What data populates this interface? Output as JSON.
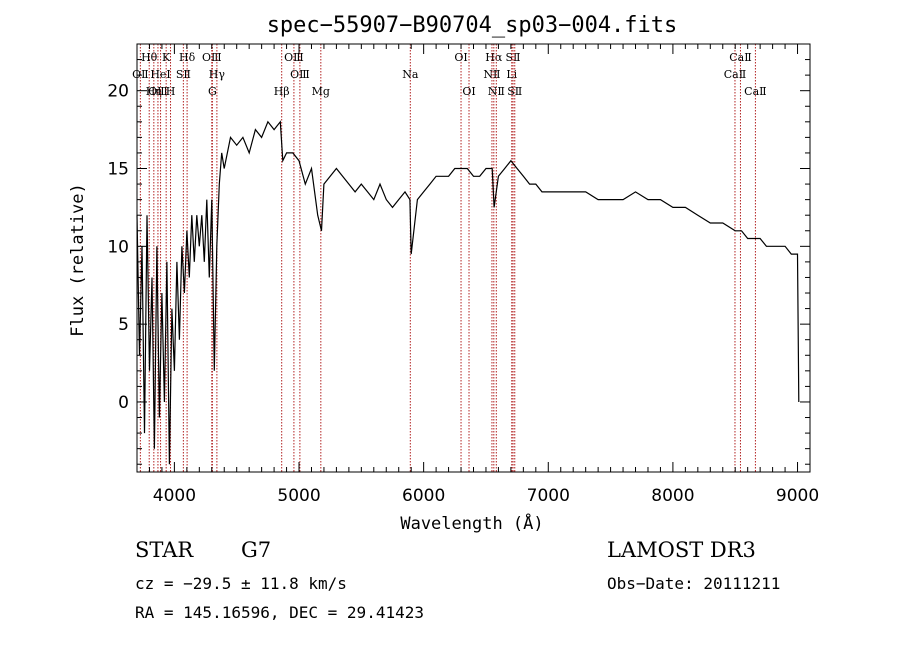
{
  "chart_data": {
    "type": "line",
    "title": "spec−55907−B90704_sp03−004.fits",
    "xlabel": "Wavelength (Å)",
    "ylabel": "Flux (relative)",
    "xlim": [
      3700,
      9100
    ],
    "ylim": [
      -4.5,
      23
    ],
    "xticks": [
      4000,
      5000,
      6000,
      7000,
      8000,
      9000
    ],
    "yticks": [
      0,
      5,
      10,
      15,
      20
    ],
    "grid": false,
    "series": [
      {
        "x": [
          3700,
          3720,
          3740,
          3760,
          3780,
          3800,
          3820,
          3840,
          3860,
          3880,
          3900,
          3920,
          3940,
          3960,
          3980,
          4000,
          4020,
          4040,
          4060,
          4080,
          4100,
          4120,
          4140,
          4160,
          4180,
          4200,
          4220,
          4240,
          4260,
          4280,
          4300,
          4320,
          4340,
          4360,
          4380,
          4400,
          4450,
          4500,
          4550,
          4600,
          4650,
          4700,
          4750,
          4800,
          4850,
          4870,
          4900,
          4950,
          5000,
          5050,
          5100,
          5150,
          5180,
          5200,
          5250,
          5300,
          5350,
          5400,
          5450,
          5500,
          5550,
          5600,
          5650,
          5700,
          5750,
          5800,
          5850,
          5890,
          5900,
          5950,
          6000,
          6050,
          6100,
          6150,
          6200,
          6250,
          6300,
          6350,
          6400,
          6450,
          6500,
          6550,
          6565,
          6600,
          6650,
          6700,
          6750,
          6800,
          6850,
          6900,
          6950,
          7000,
          7100,
          7200,
          7300,
          7400,
          7500,
          7600,
          7700,
          7800,
          7900,
          8000,
          8100,
          8200,
          8300,
          8400,
          8500,
          8550,
          8600,
          8650,
          8700,
          8750,
          8800,
          8850,
          8900,
          8950,
          9000,
          9010
        ],
        "y": [
          12,
          3,
          10,
          -2,
          12,
          2,
          8,
          -3,
          10,
          -1,
          7,
          0,
          9,
          -4,
          6,
          2,
          9,
          4,
          10,
          7,
          11,
          8,
          12,
          9,
          12,
          10,
          12,
          9,
          13,
          8,
          13,
          2,
          10,
          14,
          16,
          15,
          17,
          16.5,
          17,
          16,
          17.5,
          17,
          18,
          17.5,
          18,
          15.5,
          16,
          16,
          15.5,
          14,
          15,
          12,
          11,
          14,
          14.5,
          15,
          14.5,
          14,
          13.5,
          14,
          13.5,
          13,
          14,
          13,
          12.5,
          13,
          13.5,
          13,
          9.5,
          13,
          13.5,
          14,
          14.5,
          14.5,
          14.5,
          15,
          15,
          15,
          14.5,
          14.5,
          15,
          15,
          12.5,
          14.5,
          15,
          15.5,
          15,
          14.5,
          14,
          14,
          13.5,
          13.5,
          13.5,
          13.5,
          13.5,
          13,
          13,
          13,
          13.5,
          13,
          13,
          12.5,
          12.5,
          12,
          11.5,
          11.5,
          11,
          11,
          10.5,
          10.5,
          10.5,
          10,
          10,
          10,
          10,
          9.5,
          9.5,
          0
        ]
      }
    ],
    "spectral_lines": [
      {
        "label": "OⅡ",
        "x": 3727,
        "row": 2
      },
      {
        "label": "Hθ",
        "x": 3798,
        "row": 1
      },
      {
        "label": "OⅢ",
        "x": 3868,
        "row": 3
      },
      {
        "label": "Hη",
        "x": 3835,
        "row": 3
      },
      {
        "label": "HeI",
        "x": 3889,
        "row": 2
      },
      {
        "label": "K",
        "x": 3934,
        "row": 1
      },
      {
        "label": "H",
        "x": 3969,
        "row": 3
      },
      {
        "label": "SⅡ",
        "x": 4072,
        "row": 2
      },
      {
        "label": "Hδ",
        "x": 4102,
        "row": 1
      },
      {
        "label": "OⅢ",
        "x": 4300,
        "row": 1
      },
      {
        "label": "Hγ",
        "x": 4341,
        "row": 2
      },
      {
        "label": "G",
        "x": 4305,
        "row": 3
      },
      {
        "label": "Hβ",
        "x": 4861,
        "row": 3
      },
      {
        "label": "OⅢ",
        "x": 4959,
        "row": 1
      },
      {
        "label": "OⅢ",
        "x": 5007,
        "row": 2
      },
      {
        "label": "Mg",
        "x": 5175,
        "row": 3
      },
      {
        "label": "Na",
        "x": 5893,
        "row": 2
      },
      {
        "label": "OⅠ",
        "x": 6300,
        "row": 1
      },
      {
        "label": "OⅠ",
        "x": 6364,
        "row": 3
      },
      {
        "label": "Hα",
        "x": 6563,
        "row": 1
      },
      {
        "label": "NⅡ",
        "x": 6548,
        "row": 2
      },
      {
        "label": "NⅡ",
        "x": 6583,
        "row": 3
      },
      {
        "label": "SⅡ",
        "x": 6717,
        "row": 1
      },
      {
        "label": "Li",
        "x": 6707,
        "row": 2
      },
      {
        "label": "SⅡ",
        "x": 6731,
        "row": 3
      },
      {
        "label": "CaⅡ",
        "x": 8542,
        "row": 1
      },
      {
        "label": "CaⅡ",
        "x": 8498,
        "row": 2
      },
      {
        "label": "CaⅡ",
        "x": 8662,
        "row": 3
      }
    ],
    "line_color": "#b22222"
  },
  "info": {
    "class": "STAR",
    "subclass": "G7",
    "cz": "cz = −29.5 ± 11.8 km/s",
    "radec": "RA = 145.16596, DEC =  29.41423",
    "survey": "LAMOST DR3",
    "obsdate": "Obs−Date: 20111211"
  }
}
